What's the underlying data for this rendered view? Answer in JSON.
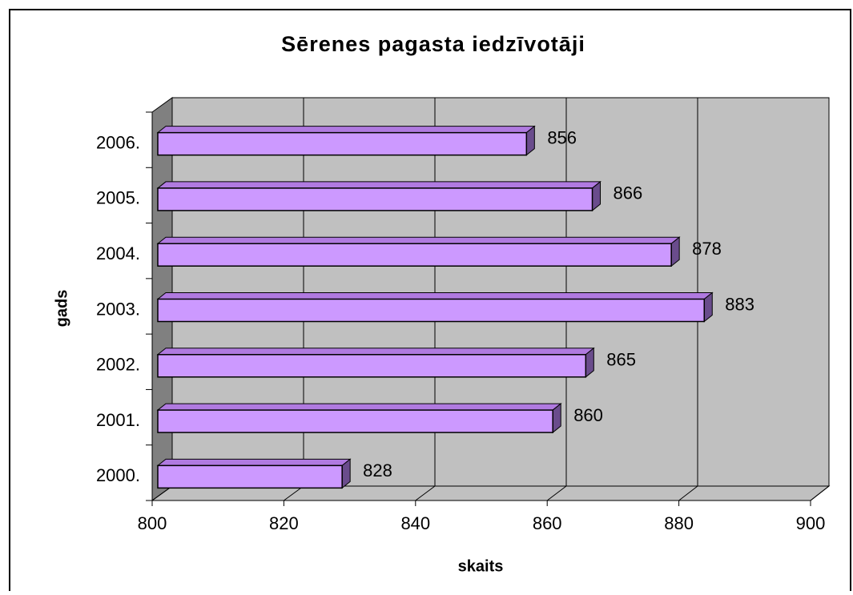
{
  "chart_data": {
    "type": "bar3d_horizontal",
    "title": "Sērenes pagasta iedzīvotāji",
    "x_label": "skaits",
    "y_label": "gads",
    "categories": [
      "2000.",
      "2001.",
      "2002.",
      "2003.",
      "2004.",
      "2005.",
      "2006."
    ],
    "values": [
      828,
      860,
      865,
      883,
      878,
      866,
      856
    ],
    "color": "#cc99ff",
    "xlim": [
      800,
      900
    ],
    "xticks": [
      800,
      820,
      840,
      860,
      880,
      900
    ],
    "grid": true
  }
}
